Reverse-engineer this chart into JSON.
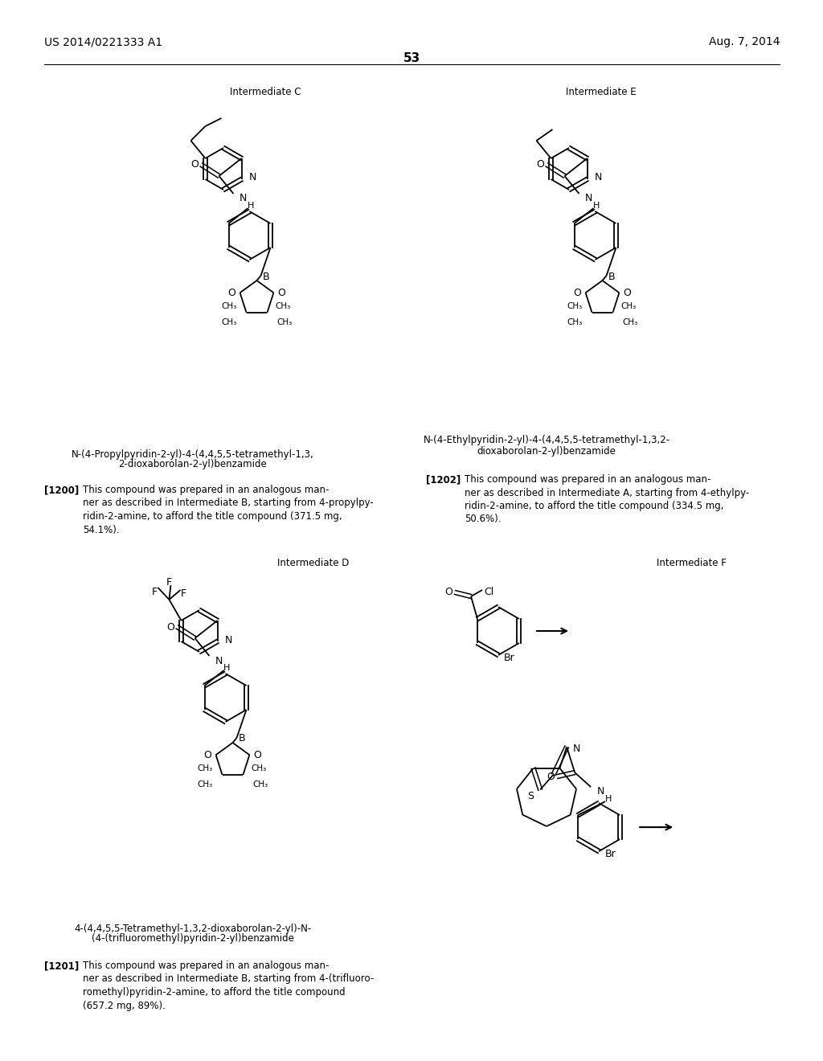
{
  "page_header_left": "US 2014/0221333 A1",
  "page_header_right": "Aug. 7, 2014",
  "page_number": "53",
  "bg_color": "#ffffff"
}
